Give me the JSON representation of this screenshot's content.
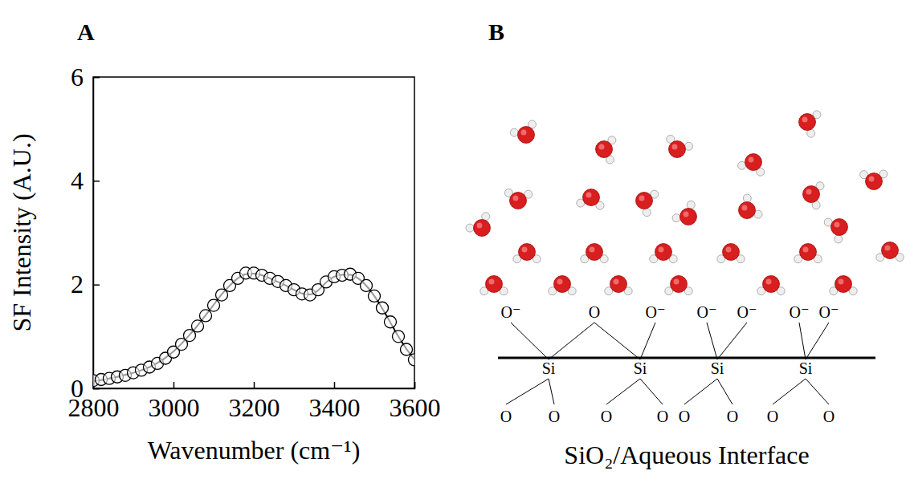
{
  "panels": [
    "A",
    "B"
  ],
  "chart_data": {
    "type": "scatter",
    "x_label": "Wavenumber (cm⁻¹)",
    "y_label": "SF Intensity (A.U.)",
    "x": [
      2800,
      2820,
      2840,
      2860,
      2880,
      2900,
      2920,
      2940,
      2960,
      2980,
      3000,
      3020,
      3040,
      3060,
      3080,
      3100,
      3120,
      3140,
      3160,
      3180,
      3200,
      3220,
      3240,
      3260,
      3280,
      3300,
      3320,
      3340,
      3360,
      3380,
      3400,
      3420,
      3440,
      3460,
      3480,
      3500,
      3520,
      3540,
      3560,
      3580,
      3600
    ],
    "series": [
      {
        "type": "scatter",
        "marker": "circle",
        "color": "#000000",
        "values": [
          0.15,
          0.17,
          0.19,
          0.22,
          0.25,
          0.3,
          0.35,
          0.41,
          0.48,
          0.58,
          0.7,
          0.85,
          1.02,
          1.2,
          1.4,
          1.6,
          1.8,
          1.98,
          2.12,
          2.22,
          2.22,
          2.18,
          2.12,
          2.06,
          1.98,
          1.9,
          1.82,
          1.8,
          1.9,
          2.05,
          2.15,
          2.18,
          2.2,
          2.12,
          1.98,
          1.78,
          1.55,
          1.28,
          1.0,
          0.75,
          0.55
        ]
      },
      {
        "type": "line",
        "line_style": "solid",
        "color": "#000000",
        "values": [
          0.14,
          0.16,
          0.19,
          0.22,
          0.26,
          0.3,
          0.35,
          0.41,
          0.49,
          0.59,
          0.71,
          0.86,
          1.03,
          1.21,
          1.41,
          1.61,
          1.81,
          1.98,
          2.12,
          2.2,
          2.21,
          2.18,
          2.12,
          2.05,
          1.98,
          1.9,
          1.83,
          1.81,
          1.89,
          2.04,
          2.15,
          2.19,
          2.19,
          2.12,
          1.98,
          1.78,
          1.54,
          1.27,
          1.0,
          0.76,
          0.56
        ]
      }
    ],
    "xlim": [
      2800,
      3600
    ],
    "xticks": [
      2800,
      3000,
      3200,
      3400,
      3600
    ],
    "ylim": [
      0,
      6
    ],
    "yticks": [
      0,
      2,
      4,
      6
    ],
    "grid": false
  },
  "diagram": {
    "surface_oxygens": [
      "O⁻",
      "O",
      "O⁻",
      "O⁻",
      "O⁻",
      "O⁻",
      "O⁻"
    ],
    "silicons": [
      "Si",
      "Si",
      "Si",
      "Si"
    ],
    "bulk_oxygens": [
      "O",
      "O",
      "O",
      "O",
      "O",
      "O",
      "O",
      "O"
    ],
    "caption": "SiO₂/Aqueous Interface"
  }
}
